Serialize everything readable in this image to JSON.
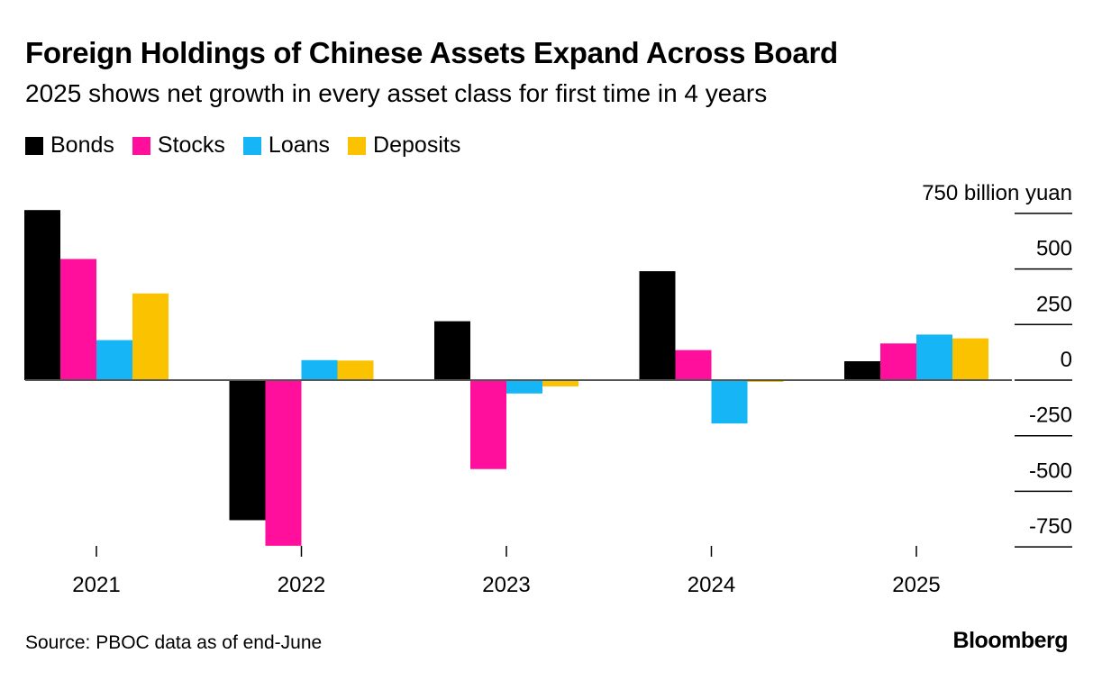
{
  "title": "Foreign Holdings of Chinese Assets Expand Across Board",
  "subtitle": "2025 shows net growth in every asset class for first time in 4 years",
  "source": "Source: PBOC data as of end-June",
  "brand": "Bloomberg",
  "chart_data": {
    "type": "bar",
    "title": "Foreign Holdings of Chinese Assets Expand Across Board",
    "subtitle": "2025 shows net growth in every asset class for first time in 4 years",
    "xlabel": "",
    "ylabel": "",
    "unit_label": "750 billion yuan",
    "categories": [
      "2021",
      "2022",
      "2023",
      "2024",
      "2025"
    ],
    "ylim": [
      -750,
      750
    ],
    "yticks": [
      750,
      500,
      250,
      0,
      -250,
      -500,
      -750
    ],
    "ytick_labels": [
      "750 billion yuan",
      "500",
      "250",
      "0",
      "-250",
      "-500",
      "-750"
    ],
    "axis_position": "right",
    "legend_position": "top-left",
    "grid": false,
    "series": [
      {
        "name": "Bonds",
        "color": "#000000",
        "values": [
          765,
          -630,
          265,
          490,
          85
        ]
      },
      {
        "name": "Stocks",
        "color": "#ff0f9b",
        "values": [
          545,
          -745,
          -400,
          135,
          165
        ]
      },
      {
        "name": "Loans",
        "color": "#16b5f6",
        "values": [
          180,
          90,
          -60,
          -195,
          205
        ]
      },
      {
        "name": "Deposits",
        "color": "#fbc200",
        "values": [
          390,
          88,
          -28,
          -8,
          188
        ]
      }
    ]
  }
}
